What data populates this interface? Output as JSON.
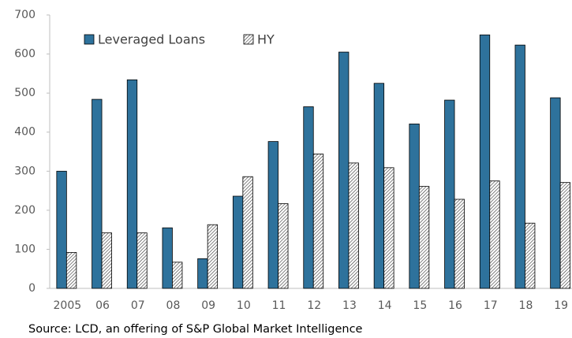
{
  "chart_data": {
    "type": "bar",
    "categories": [
      "2005",
      "06",
      "07",
      "08",
      "09",
      "10",
      "11",
      "12",
      "13",
      "14",
      "15",
      "16",
      "17",
      "18",
      "19"
    ],
    "series": [
      {
        "name": "Leveraged Loans",
        "color": "#2e729c",
        "values": [
          300,
          484,
          534,
          155,
          76,
          236,
          376,
          465,
          605,
          525,
          421,
          482,
          649,
          623,
          488
        ]
      },
      {
        "name": "HY",
        "color": "#333333",
        "pattern": "hatch",
        "values": [
          92,
          142,
          142,
          67,
          163,
          286,
          217,
          344,
          321,
          309,
          261,
          228,
          275,
          167,
          271
        ]
      }
    ],
    "ylim": [
      0,
      700
    ],
    "yticks": [
      0,
      100,
      200,
      300,
      400,
      500,
      600,
      700
    ],
    "grid": false,
    "source": "Source: LCD, an offering of S&P Global Market Intelligence"
  }
}
